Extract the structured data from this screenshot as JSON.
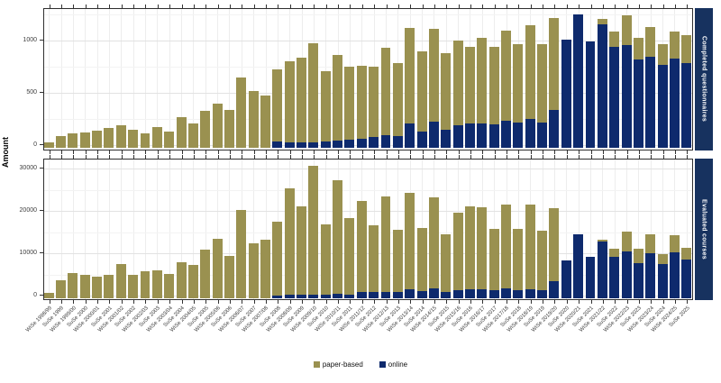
{
  "y_axis_title": "Amount",
  "colors": {
    "paper_based": "#9a9150",
    "online": "#0e2a6d",
    "strip_bg": "#17325f",
    "strip_text": "#ffffff",
    "panel_border": "#2f2f2f"
  },
  "legend": {
    "items": [
      {
        "label": "paper-based",
        "color": "#9a9150"
      },
      {
        "label": "online",
        "color": "#0e2a6d"
      }
    ]
  },
  "chart_data": {
    "type": "bar",
    "stacked": true,
    "legend_position": "bottom",
    "grid": true,
    "ylabel": "Amount",
    "categories": [
      "WiSe 1998/99",
      "SuSe 1999",
      "WiSe 1999/00",
      "SuSe 2000",
      "WiSe 2000/01",
      "SuSe 2001",
      "WiSe 2001/02",
      "SuSe 2002",
      "WiSe 2002/03",
      "SuSe 2003",
      "WiSe 2003/04",
      "SuSe 2004",
      "WiSe 2004/05",
      "SuSe 2005",
      "WiSe 2005/06",
      "SuSe 2006",
      "WiSe 2006/07",
      "SuSe 2007",
      "WiSe 2007/08",
      "SuSe 2008",
      "WiSe 2008/09",
      "SuSe 2009",
      "WiSe 2009/10",
      "SuSe 2010",
      "WiSe 2010/11",
      "SuSe 2011",
      "WiSe 2011/12",
      "SuSe 2012",
      "WiSe 2012/13",
      "SuSe 2013",
      "WiSe 2013/14",
      "SuSe 2014",
      "WiSe 2014/15",
      "SuSe 2015",
      "WiSe 2015/16",
      "SuSe 2016",
      "WiSe 2016/17",
      "SuSe 2017",
      "WiSe 2017/18",
      "SuSe 2018",
      "WiSe 2018/19",
      "SuSe 2019",
      "WiSe 2019/20",
      "SuSe 2020",
      "WiSe 2020/21",
      "SuSe 2021",
      "WiSe 2021/22",
      "SuSe 2022",
      "WiSe 2022/23",
      "SuSe 2023",
      "WiSe 2023/24",
      "SuSe 2024",
      "WiSe 2024/25",
      "SuSe 2025"
    ],
    "panels": [
      {
        "facet": "Completed questionnaires",
        "ylim": [
          0,
          1330
        ],
        "yticks": [
          0,
          500,
          1000
        ],
        "yticks_minor": [
          250,
          750,
          1250
        ],
        "series": [
          {
            "name": "paper-based",
            "values": [
              50,
              110,
              130,
              145,
              160,
              185,
              215,
              170,
              130,
              190,
              150,
              290,
              230,
              345,
              415,
              355,
              665,
              535,
              500,
              690,
              775,
              805,
              955,
              670,
              820,
              705,
              695,
              675,
              835,
              695,
              910,
              765,
              885,
              730,
              805,
              735,
              820,
              745,
              865,
              755,
              890,
              750,
              875,
              0,
              0,
              0,
              45,
              140,
              285,
              210,
              285,
              195,
              255,
              265
            ]
          },
          {
            "name": "online",
            "values": [
              0,
              0,
              0,
              0,
              0,
              0,
              0,
              0,
              0,
              0,
              0,
              0,
              0,
              0,
              0,
              0,
              0,
              0,
              0,
              55,
              45,
              50,
              45,
              60,
              65,
              70,
              85,
              100,
              115,
              110,
              230,
              155,
              245,
              170,
              215,
              230,
              225,
              220,
              255,
              235,
              275,
              240,
              360,
              1030,
              1275,
              1015,
              1180,
              965,
              980,
              840,
              865,
              790,
              850,
              805
            ]
          }
        ]
      },
      {
        "facet": "Evaluated courses",
        "ylim": [
          0,
          33500
        ],
        "yticks": [
          0,
          10000,
          20000,
          30000
        ],
        "yticks_minor": [
          5000,
          15000,
          25000
        ],
        "series": [
          {
            "name": "paper-based",
            "values": [
              1100,
              4200,
              5800,
              5400,
              5100,
              5500,
              8000,
              5500,
              6300,
              6500,
              5700,
              8500,
              7800,
              11300,
              14000,
              9900,
              20800,
              12900,
              13700,
              17300,
              25200,
              20900,
              30400,
              16700,
              26700,
              18000,
              21400,
              15900,
              22500,
              14700,
              22800,
              14900,
              21500,
              13700,
              18400,
              19500,
              19200,
              14400,
              19700,
              14500,
              20000,
              14000,
              17200,
              0,
              0,
              0,
              500,
              2100,
              4700,
              3300,
              4300,
              2500,
              3900,
              2700
            ]
          },
          {
            "name": "online",
            "values": [
              0,
              0,
              0,
              0,
              0,
              0,
              0,
              0,
              0,
              0,
              0,
              0,
              0,
              0,
              0,
              0,
              0,
              0,
              0,
              600,
              700,
              700,
              850,
              700,
              1050,
              850,
              1400,
              1300,
              1400,
              1300,
              2000,
              1600,
              2300,
              1400,
              1800,
              2100,
              2100,
              1800,
              2300,
              1800,
              2100,
              1800,
              3900,
              8900,
              15000,
              9600,
              13300,
              9600,
              11000,
              8200,
              10600,
              7900,
              10800,
              9100
            ]
          }
        ]
      }
    ]
  }
}
